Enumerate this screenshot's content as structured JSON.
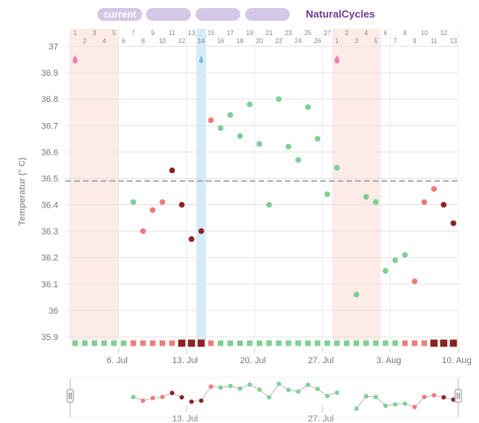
{
  "header": {
    "tabs": [
      {
        "label": "current",
        "active": true
      },
      {
        "label": "",
        "active": false
      },
      {
        "label": "",
        "active": false
      },
      {
        "label": "",
        "active": false
      }
    ],
    "brand": "NaturalCycles"
  },
  "colors": {
    "fertile": "#ef7b7b",
    "infertile": "#7fcf95",
    "period": "#8b2323",
    "period_bg": "#fcebe6",
    "ovulation_bg": "#d6ebf9",
    "coverline": "#aaaaaa",
    "brand": "#6b3d99"
  },
  "icons": {
    "period_marker": "pink-drop-icon",
    "ovulation_marker": "blue-drop-icon",
    "scroll_handle": "slider-handle-icon"
  },
  "chart_data": {
    "type": "scatter",
    "ylabel": "Temperatur (° C)",
    "ylim": [
      35.9,
      37.0
    ],
    "yticks": [
      35.9,
      36.0,
      36.1,
      36.2,
      36.3,
      36.4,
      36.5,
      36.6,
      36.7,
      36.8,
      36.9,
      37.0
    ],
    "ytick_labels": [
      "35.9",
      "36",
      "36.1",
      "36.2",
      "36.3",
      "36.4",
      "36.5",
      "36.6",
      "36.7",
      "36.8",
      "36.9",
      "37"
    ],
    "coverline": 36.49,
    "grid": true,
    "cycle_day_labels": [
      "1",
      "2",
      "3",
      "4",
      "5",
      "6",
      "7",
      "8",
      "9",
      "10",
      "11",
      "12",
      "13",
      "14",
      "15",
      "16",
      "17",
      "18",
      "19",
      "20",
      "21",
      "22",
      "23",
      "24",
      "25",
      "26",
      "27",
      "1",
      "2",
      "3",
      "4",
      "5",
      "6",
      "7",
      "8",
      "9",
      "10",
      "11",
      "12",
      "13"
    ],
    "date_ticks": [
      {
        "day": 4,
        "label": "6. Jul"
      },
      {
        "day": 11,
        "label": "13. Jul"
      },
      {
        "day": 18,
        "label": "20. Jul"
      },
      {
        "day": 25,
        "label": "27. Jul"
      },
      {
        "day": 32,
        "label": "3. Aug"
      },
      {
        "day": 39,
        "label": "10. Aug"
      }
    ],
    "period_ranges": [
      [
        0,
        4
      ],
      [
        27,
        31
      ]
    ],
    "ovulation_day": 13,
    "markers": [
      {
        "day": 0,
        "type": "period",
        "y": 36.95
      },
      {
        "day": 13,
        "type": "ovulation",
        "y": 36.95
      },
      {
        "day": 27,
        "type": "period",
        "y": 36.95
      }
    ],
    "points": [
      {
        "day": 6,
        "y": 36.41,
        "status": "infertile"
      },
      {
        "day": 7,
        "y": 36.3,
        "status": "fertile"
      },
      {
        "day": 8,
        "y": 36.38,
        "status": "fertile"
      },
      {
        "day": 9,
        "y": 36.41,
        "status": "fertile"
      },
      {
        "day": 10,
        "y": 36.53,
        "status": "period"
      },
      {
        "day": 11,
        "y": 36.4,
        "status": "period"
      },
      {
        "day": 12,
        "y": 36.27,
        "status": "period"
      },
      {
        "day": 13,
        "y": 36.3,
        "status": "period"
      },
      {
        "day": 14,
        "y": 36.72,
        "status": "fertile"
      },
      {
        "day": 15,
        "y": 36.69,
        "status": "infertile"
      },
      {
        "day": 16,
        "y": 36.74,
        "status": "infertile"
      },
      {
        "day": 17,
        "y": 36.66,
        "status": "infertile"
      },
      {
        "day": 18,
        "y": 36.78,
        "status": "infertile"
      },
      {
        "day": 19,
        "y": 36.63,
        "status": "infertile"
      },
      {
        "day": 20,
        "y": 36.4,
        "status": "infertile"
      },
      {
        "day": 21,
        "y": 36.8,
        "status": "infertile"
      },
      {
        "day": 22,
        "y": 36.62,
        "status": "infertile"
      },
      {
        "day": 23,
        "y": 36.57,
        "status": "infertile"
      },
      {
        "day": 24,
        "y": 36.77,
        "status": "infertile"
      },
      {
        "day": 25,
        "y": 36.65,
        "status": "infertile"
      },
      {
        "day": 26,
        "y": 36.44,
        "status": "infertile"
      },
      {
        "day": 27,
        "y": 36.54,
        "status": "infertile"
      },
      {
        "day": 29,
        "y": 36.06,
        "status": "infertile"
      },
      {
        "day": 30,
        "y": 36.43,
        "status": "infertile"
      },
      {
        "day": 31,
        "y": 36.41,
        "status": "infertile"
      },
      {
        "day": 32,
        "y": 36.15,
        "status": "infertile"
      },
      {
        "day": 33,
        "y": 36.19,
        "status": "infertile"
      },
      {
        "day": 34,
        "y": 36.21,
        "status": "infertile"
      },
      {
        "day": 35,
        "y": 36.11,
        "status": "fertile"
      },
      {
        "day": 36,
        "y": 36.41,
        "status": "fertile"
      },
      {
        "day": 37,
        "y": 36.46,
        "status": "fertile"
      },
      {
        "day": 38,
        "y": 36.4,
        "status": "period"
      },
      {
        "day": 39,
        "y": 36.33,
        "status": "period"
      }
    ],
    "day_status": [
      "infertile",
      "infertile",
      "infertile",
      "infertile",
      "infertile",
      "infertile",
      "fertile",
      "fertile",
      "fertile",
      "fertile",
      "fertile",
      "period",
      "period",
      "period",
      "fertile",
      "infertile",
      "infertile",
      "infertile",
      "infertile",
      "infertile",
      "infertile",
      "infertile",
      "infertile",
      "infertile",
      "infertile",
      "infertile",
      "infertile",
      "infertile",
      "infertile",
      "infertile",
      "infertile",
      "infertile",
      "infertile",
      "infertile",
      "fertile",
      "fertile",
      "fertile",
      "period",
      "period",
      "period"
    ],
    "navigator_labels": [
      {
        "day": 11,
        "label": "13. Jul"
      },
      {
        "day": 25,
        "label": "27. Jul"
      }
    ]
  }
}
